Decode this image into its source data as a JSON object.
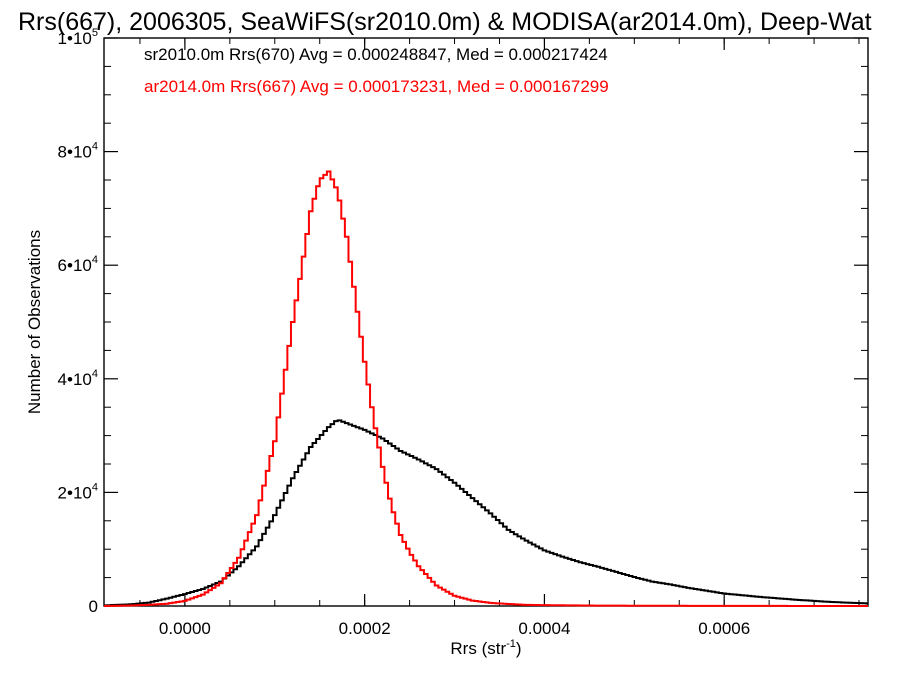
{
  "chart_data": {
    "type": "line",
    "title": "Rrs(667), 2006305, SeaWiFS(sr2010.0m) & MODISA(ar2014.0m), Deep-Wat",
    "xlabel_main": "Rrs (str",
    "xlabel_sup": "-1",
    "xlabel_end": ")",
    "ylabel": "Number of Observations",
    "xlim": [
      -9e-05,
      0.00076
    ],
    "ylim": [
      0,
      100000
    ],
    "x_ticks": [
      {
        "value": 0.0,
        "label": "0.0000"
      },
      {
        "value": 0.0002,
        "label": "0.0002"
      },
      {
        "value": 0.0004,
        "label": "0.0004"
      },
      {
        "value": 0.0006,
        "label": "0.0006"
      }
    ],
    "y_ticks": [
      {
        "value": 0,
        "base": "0",
        "exp": ""
      },
      {
        "value": 20000,
        "base": "2•10",
        "exp": "4"
      },
      {
        "value": 40000,
        "base": "4•10",
        "exp": "4"
      },
      {
        "value": 60000,
        "base": "6•10",
        "exp": "4"
      },
      {
        "value": 80000,
        "base": "8•10",
        "exp": "4"
      },
      {
        "value": 100000,
        "base": "1•10",
        "exp": "5"
      }
    ],
    "legend_placement": "top-left",
    "series": [
      {
        "name": "sr2010.0m Rrs(670) Avg = 0.000248847, Med = 0.000217424",
        "color": "#000000",
        "x": [
          -9e-05,
          -6e-05,
          -4e-05,
          -2e-05,
          0.0,
          2e-05,
          4e-05,
          6e-05,
          8e-05,
          0.0001,
          0.00012,
          0.00014,
          0.00016,
          0.00017,
          0.00018,
          0.0002,
          0.00022,
          0.00024,
          0.00026,
          0.00028,
          0.0003,
          0.00032,
          0.00034,
          0.00036,
          0.00038,
          0.0004,
          0.00042,
          0.00044,
          0.00046,
          0.00048,
          0.0005,
          0.00052,
          0.00054,
          0.00056,
          0.00058,
          0.0006,
          0.00064,
          0.00068,
          0.00072,
          0.00076
        ],
        "y": [
          100,
          300,
          600,
          1300,
          2100,
          3000,
          4300,
          7000,
          10500,
          16000,
          22500,
          28000,
          31500,
          32800,
          32200,
          31000,
          29500,
          27300,
          25800,
          24100,
          21700,
          19000,
          16300,
          13400,
          11500,
          9800,
          8700,
          7700,
          6900,
          6000,
          5100,
          4300,
          3800,
          3200,
          2700,
          2200,
          1600,
          1100,
          700,
          450
        ]
      },
      {
        "name": "ar2014.0m Rrs(667) Avg = 0.000173231, Med = 0.000167299",
        "color": "#ff0000",
        "x": [
          -9e-05,
          -6e-05,
          -4e-05,
          -2e-05,
          0.0,
          2e-05,
          4e-05,
          6e-05,
          8e-05,
          0.0001,
          0.00012,
          0.00013,
          0.00014,
          0.00015,
          0.00016,
          0.00017,
          0.00018,
          0.00019,
          0.0002,
          0.00021,
          0.00022,
          0.00023,
          0.00024,
          0.00025,
          0.00026,
          0.00028,
          0.0003,
          0.00032,
          0.00034,
          0.00036,
          0.00038,
          0.0004,
          0.00045,
          0.0005,
          0.0006,
          0.00076
        ],
        "y": [
          0,
          80,
          200,
          400,
          900,
          2000,
          4000,
          8500,
          16000,
          29000,
          50000,
          59500,
          69500,
          75000,
          76500,
          73000,
          65000,
          54000,
          43000,
          33000,
          24500,
          17500,
          12500,
          9500,
          7000,
          3600,
          1800,
          950,
          550,
          350,
          200,
          150,
          80,
          50,
          20,
          0
        ]
      }
    ]
  }
}
